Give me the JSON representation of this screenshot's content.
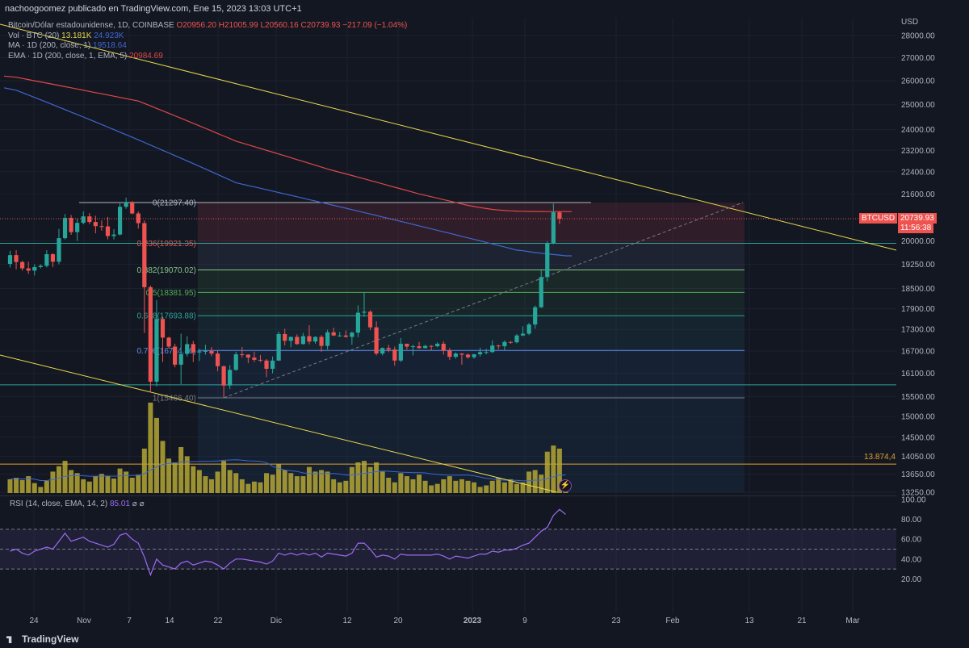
{
  "header": {
    "publisher_line": "nachoogoomez publicado en TradingView.com, Ene 15, 2023 13:03 UTC+1"
  },
  "legend": {
    "symbol_line": "Bitcoin/Dólar estadounidense, 1D, COINBASE",
    "ohlc": {
      "o": "O20956.20",
      "h": "H21005.99",
      "l": "L20560.16",
      "c": "C20739.93",
      "chg": "−217.09 (−1.04%)"
    },
    "vol_label": "Vol · BTC (20)",
    "vol_value": "13.181K",
    "vol_ma": "24.923K",
    "ma_label": "MA · 1D (200, close, 1)",
    "ma_value": "19518.64",
    "ema_label": "EMA · 1D (200, close, 1, EMA, 5)",
    "ema_value": "20984.69"
  },
  "rsi_legend": {
    "label": "RSI (14, close, EMA, 14, 2)",
    "value": "85.01",
    "extra": "⌀ ⌀"
  },
  "price_tag": {
    "symbol": "BTCUSD",
    "price": "20739.93",
    "countdown": "11:56:38"
  },
  "hline_label": "13.874,4",
  "footer": {
    "brand": "TradingView"
  },
  "colors": {
    "background": "#131722",
    "up": "#26a69a",
    "down": "#ef5350",
    "volume": "#b5a734",
    "ma": "#3f67d0",
    "ema": "#e04848",
    "trendline": "#e8d84b",
    "rsi": "#9c6cf2"
  },
  "chart_data": {
    "type": "candlestick",
    "currency": "USD",
    "price_axis": {
      "unit": "USD",
      "ticks": [
        "28000.00",
        "27000.00",
        "26000.00",
        "25000.00",
        "24000.00",
        "23200.00",
        "22400.00",
        "21600.00",
        "20000.00",
        "19250.00",
        "18500.00",
        "17900.00",
        "17300.00",
        "16700.00",
        "16100.00",
        "15500.00",
        "15000.00",
        "14500.00",
        "14050.00",
        "13650.00",
        "13250.00"
      ],
      "tick_values": [
        28000,
        27000,
        26000,
        25000,
        24000,
        23200,
        22400,
        21600,
        20000,
        19250,
        18500,
        17900,
        17300,
        16700,
        16100,
        15500,
        15000,
        14500,
        14050,
        13650,
        13250
      ],
      "scale": "log"
    },
    "x_axis": {
      "tick_labels": [
        "24",
        "Nov",
        "7",
        "14",
        "22",
        "Dic",
        "12",
        "20",
        "2023",
        "9",
        "23",
        "Feb",
        "13",
        "21",
        "Mar"
      ]
    },
    "fibonacci": {
      "levels": [
        {
          "ratio": "0",
          "price": 21297.4,
          "label": "0(21297.40)"
        },
        {
          "ratio": "0.236",
          "price": 19921.35,
          "label": "0.236(19921.35)"
        },
        {
          "ratio": "0.382",
          "price": 19070.02,
          "label": "0.382(19070.02)"
        },
        {
          "ratio": "0.5",
          "price": 18381.95,
          "label": "0.5(18381.95)"
        },
        {
          "ratio": "0.618",
          "price": 17693.88,
          "label": "0.618(17693.88)"
        },
        {
          "ratio": "0.786",
          "price": 16714.86,
          "label": "0.786(16714.86)"
        },
        {
          "ratio": "1",
          "price": 15466.4,
          "label": "1(15466.40)"
        }
      ]
    },
    "horizontal_lines": [
      19921,
      15800,
      13874.4
    ],
    "candles": [
      {
        "date": "2022-10-17",
        "o": 19260,
        "h": 19680,
        "l": 19150,
        "c": 19540
      },
      {
        "date": "2022-10-18",
        "o": 19540,
        "h": 19700,
        "l": 19090,
        "c": 19320
      },
      {
        "date": "2022-10-19",
        "o": 19320,
        "h": 19360,
        "l": 19050,
        "c": 19120
      },
      {
        "date": "2022-10-20",
        "o": 19120,
        "h": 19330,
        "l": 18950,
        "c": 19050
      },
      {
        "date": "2022-10-21",
        "o": 19050,
        "h": 19250,
        "l": 18900,
        "c": 19160
      },
      {
        "date": "2022-10-22",
        "o": 19160,
        "h": 19250,
        "l": 19120,
        "c": 19200
      },
      {
        "date": "2022-10-23",
        "o": 19200,
        "h": 19700,
        "l": 19150,
        "c": 19570
      },
      {
        "date": "2022-10-24",
        "o": 19570,
        "h": 19600,
        "l": 19160,
        "c": 19330
      },
      {
        "date": "2022-10-25",
        "o": 19330,
        "h": 20400,
        "l": 19250,
        "c": 20090
      },
      {
        "date": "2022-10-26",
        "o": 20090,
        "h": 20900,
        "l": 20050,
        "c": 20770
      },
      {
        "date": "2022-10-27",
        "o": 20770,
        "h": 20870,
        "l": 20200,
        "c": 20290
      },
      {
        "date": "2022-10-28",
        "o": 20290,
        "h": 20750,
        "l": 20000,
        "c": 20600
      },
      {
        "date": "2022-10-29",
        "o": 20600,
        "h": 20990,
        "l": 20550,
        "c": 20820
      },
      {
        "date": "2022-10-30",
        "o": 20820,
        "h": 20930,
        "l": 20560,
        "c": 20630
      },
      {
        "date": "2022-10-31",
        "o": 20630,
        "h": 20840,
        "l": 20250,
        "c": 20490
      },
      {
        "date": "2022-11-01",
        "o": 20490,
        "h": 20680,
        "l": 20340,
        "c": 20480
      },
      {
        "date": "2022-11-02",
        "o": 20480,
        "h": 20800,
        "l": 20050,
        "c": 20160
      },
      {
        "date": "2022-11-03",
        "o": 20160,
        "h": 20390,
        "l": 20050,
        "c": 20210
      },
      {
        "date": "2022-11-04",
        "o": 20210,
        "h": 21300,
        "l": 20180,
        "c": 21150
      },
      {
        "date": "2022-11-05",
        "o": 21150,
        "h": 21470,
        "l": 21080,
        "c": 21300
      },
      {
        "date": "2022-11-06",
        "o": 21300,
        "h": 21350,
        "l": 20890,
        "c": 20920
      },
      {
        "date": "2022-11-07",
        "o": 20920,
        "h": 20990,
        "l": 20410,
        "c": 20590
      },
      {
        "date": "2022-11-08",
        "o": 20590,
        "h": 20680,
        "l": 17200,
        "c": 18540
      },
      {
        "date": "2022-11-09",
        "o": 18540,
        "h": 18590,
        "l": 15600,
        "c": 15880
      },
      {
        "date": "2022-11-10",
        "o": 15880,
        "h": 18150,
        "l": 15760,
        "c": 17600
      },
      {
        "date": "2022-11-11",
        "o": 17600,
        "h": 17670,
        "l": 16400,
        "c": 17070
      },
      {
        "date": "2022-11-12",
        "o": 17070,
        "h": 17090,
        "l": 16770,
        "c": 16820
      },
      {
        "date": "2022-11-13",
        "o": 16820,
        "h": 16900,
        "l": 16260,
        "c": 16330
      },
      {
        "date": "2022-11-14",
        "o": 16330,
        "h": 17180,
        "l": 15820,
        "c": 16620
      },
      {
        "date": "2022-11-15",
        "o": 16620,
        "h": 17110,
        "l": 16550,
        "c": 16890
      },
      {
        "date": "2022-11-16",
        "o": 16890,
        "h": 16980,
        "l": 16400,
        "c": 16660
      },
      {
        "date": "2022-11-17",
        "o": 16660,
        "h": 16760,
        "l": 16430,
        "c": 16690
      },
      {
        "date": "2022-11-18",
        "o": 16690,
        "h": 16870,
        "l": 16600,
        "c": 16700
      },
      {
        "date": "2022-11-19",
        "o": 16700,
        "h": 16810,
        "l": 16560,
        "c": 16630
      },
      {
        "date": "2022-11-20",
        "o": 16630,
        "h": 16700,
        "l": 16160,
        "c": 16290
      },
      {
        "date": "2022-11-21",
        "o": 16290,
        "h": 16300,
        "l": 15480,
        "c": 15780
      },
      {
        "date": "2022-11-22",
        "o": 15780,
        "h": 16320,
        "l": 15690,
        "c": 16190
      },
      {
        "date": "2022-11-23",
        "o": 16190,
        "h": 16680,
        "l": 16170,
        "c": 16610
      },
      {
        "date": "2022-11-24",
        "o": 16610,
        "h": 16810,
        "l": 16520,
        "c": 16600
      },
      {
        "date": "2022-11-25",
        "o": 16600,
        "h": 16610,
        "l": 16370,
        "c": 16520
      },
      {
        "date": "2022-11-26",
        "o": 16520,
        "h": 16680,
        "l": 16400,
        "c": 16460
      },
      {
        "date": "2022-11-27",
        "o": 16460,
        "h": 16590,
        "l": 16400,
        "c": 16440
      },
      {
        "date": "2022-11-28",
        "o": 16440,
        "h": 16480,
        "l": 16000,
        "c": 16220
      },
      {
        "date": "2022-11-29",
        "o": 16220,
        "h": 16550,
        "l": 16100,
        "c": 16440
      },
      {
        "date": "2022-11-30",
        "o": 16440,
        "h": 17240,
        "l": 16430,
        "c": 17170
      },
      {
        "date": "2022-12-01",
        "o": 17170,
        "h": 17320,
        "l": 16850,
        "c": 16980
      },
      {
        "date": "2022-12-02",
        "o": 16980,
        "h": 17100,
        "l": 16800,
        "c": 17090
      },
      {
        "date": "2022-12-03",
        "o": 17090,
        "h": 17160,
        "l": 16870,
        "c": 16890
      },
      {
        "date": "2022-12-04",
        "o": 16890,
        "h": 17200,
        "l": 16880,
        "c": 17110
      },
      {
        "date": "2022-12-05",
        "o": 17110,
        "h": 17420,
        "l": 16880,
        "c": 16960
      },
      {
        "date": "2022-12-06",
        "o": 16960,
        "h": 17110,
        "l": 16900,
        "c": 17090
      },
      {
        "date": "2022-12-07",
        "o": 17090,
        "h": 17140,
        "l": 16680,
        "c": 16840
      },
      {
        "date": "2022-12-08",
        "o": 16840,
        "h": 17290,
        "l": 16740,
        "c": 17220
      },
      {
        "date": "2022-12-09",
        "o": 17220,
        "h": 17350,
        "l": 17110,
        "c": 17130
      },
      {
        "date": "2022-12-10",
        "o": 17130,
        "h": 17230,
        "l": 17090,
        "c": 17130
      },
      {
        "date": "2022-12-11",
        "o": 17130,
        "h": 17270,
        "l": 17070,
        "c": 17090
      },
      {
        "date": "2022-12-12",
        "o": 17090,
        "h": 17240,
        "l": 16870,
        "c": 17210
      },
      {
        "date": "2022-12-13",
        "o": 17210,
        "h": 18000,
        "l": 17080,
        "c": 17780
      },
      {
        "date": "2022-12-14",
        "o": 17780,
        "h": 18370,
        "l": 17660,
        "c": 17810
      },
      {
        "date": "2022-12-15",
        "o": 17810,
        "h": 17850,
        "l": 17280,
        "c": 17360
      },
      {
        "date": "2022-12-16",
        "o": 17360,
        "h": 17530,
        "l": 16580,
        "c": 16630
      },
      {
        "date": "2022-12-17",
        "o": 16630,
        "h": 16800,
        "l": 16580,
        "c": 16780
      },
      {
        "date": "2022-12-18",
        "o": 16780,
        "h": 16870,
        "l": 16670,
        "c": 16740
      },
      {
        "date": "2022-12-19",
        "o": 16740,
        "h": 16820,
        "l": 16300,
        "c": 16440
      },
      {
        "date": "2022-12-20",
        "o": 16440,
        "h": 17060,
        "l": 16400,
        "c": 16900
      },
      {
        "date": "2022-12-21",
        "o": 16900,
        "h": 16900,
        "l": 16740,
        "c": 16820
      },
      {
        "date": "2022-12-22",
        "o": 16820,
        "h": 16870,
        "l": 16580,
        "c": 16830
      },
      {
        "date": "2022-12-23",
        "o": 16830,
        "h": 16950,
        "l": 16760,
        "c": 16780
      },
      {
        "date": "2022-12-24",
        "o": 16780,
        "h": 16870,
        "l": 16770,
        "c": 16840
      },
      {
        "date": "2022-12-25",
        "o": 16840,
        "h": 16860,
        "l": 16720,
        "c": 16830
      },
      {
        "date": "2022-12-26",
        "o": 16830,
        "h": 16940,
        "l": 16800,
        "c": 16900
      },
      {
        "date": "2022-12-27",
        "o": 16900,
        "h": 16970,
        "l": 16600,
        "c": 16710
      },
      {
        "date": "2022-12-28",
        "o": 16710,
        "h": 16780,
        "l": 16460,
        "c": 16540
      },
      {
        "date": "2022-12-29",
        "o": 16540,
        "h": 16660,
        "l": 16490,
        "c": 16630
      },
      {
        "date": "2022-12-30",
        "o": 16630,
        "h": 16640,
        "l": 16330,
        "c": 16600
      },
      {
        "date": "2022-12-31",
        "o": 16600,
        "h": 16630,
        "l": 16490,
        "c": 16530
      },
      {
        "date": "2023-01-01",
        "o": 16530,
        "h": 16620,
        "l": 16490,
        "c": 16610
      },
      {
        "date": "2023-01-02",
        "o": 16610,
        "h": 16790,
        "l": 16550,
        "c": 16670
      },
      {
        "date": "2023-01-03",
        "o": 16670,
        "h": 16760,
        "l": 16610,
        "c": 16670
      },
      {
        "date": "2023-01-04",
        "o": 16670,
        "h": 16990,
        "l": 16650,
        "c": 16850
      },
      {
        "date": "2023-01-05",
        "o": 16850,
        "h": 16870,
        "l": 16750,
        "c": 16830
      },
      {
        "date": "2023-01-06",
        "o": 16830,
        "h": 16990,
        "l": 16710,
        "c": 16950
      },
      {
        "date": "2023-01-07",
        "o": 16950,
        "h": 16970,
        "l": 16900,
        "c": 16940
      },
      {
        "date": "2023-01-08",
        "o": 16940,
        "h": 17170,
        "l": 16910,
        "c": 17130
      },
      {
        "date": "2023-01-09",
        "o": 17130,
        "h": 17390,
        "l": 17110,
        "c": 17180
      },
      {
        "date": "2023-01-10",
        "o": 17180,
        "h": 17490,
        "l": 17140,
        "c": 17440
      },
      {
        "date": "2023-01-11",
        "o": 17440,
        "h": 17990,
        "l": 17320,
        "c": 17940
      },
      {
        "date": "2023-01-12",
        "o": 17940,
        "h": 19100,
        "l": 17920,
        "c": 18850
      },
      {
        "date": "2023-01-13",
        "o": 18850,
        "h": 19990,
        "l": 18720,
        "c": 19930
      },
      {
        "date": "2023-01-14",
        "o": 19930,
        "h": 21260,
        "l": 19890,
        "c": 20960
      },
      {
        "date": "2023-01-15",
        "o": 20956.2,
        "h": 21005.99,
        "l": 20560.16,
        "c": 20739.93
      }
    ],
    "volume_k": [
      18,
      20,
      17,
      22,
      13,
      8,
      16,
      28,
      35,
      42,
      30,
      26,
      18,
      15,
      22,
      25,
      22,
      19,
      32,
      28,
      20,
      24,
      58,
      118,
      98,
      68,
      45,
      40,
      60,
      48,
      35,
      30,
      22,
      18,
      28,
      42,
      30,
      26,
      18,
      12,
      15,
      14,
      26,
      24,
      38,
      30,
      26,
      22,
      22,
      34,
      28,
      30,
      28,
      18,
      14,
      16,
      34,
      40,
      42,
      34,
      40,
      28,
      20,
      14,
      26,
      22,
      18,
      24,
      16,
      10,
      12,
      18,
      22,
      16,
      18,
      16,
      14,
      8,
      10,
      16,
      20,
      14,
      18,
      12,
      14,
      28,
      30,
      24,
      54,
      62,
      58,
      14
    ],
    "ma_200": [
      25700,
      25600,
      25500,
      25400,
      25300,
      25200,
      25100,
      25000,
      24900,
      24800,
      24700,
      24600,
      24500,
      24400,
      24300,
      24200,
      24100,
      24000,
      23900,
      23800,
      23700,
      23600,
      23500,
      23400,
      23300,
      23200,
      23100,
      23000,
      22900,
      22800,
      22700,
      22600,
      22500,
      22400,
      22300,
      22200,
      22100,
      22000,
      21950,
      21900,
      21850,
      21800,
      21750,
      21700,
      21650,
      21600,
      21550,
      21500,
      21450,
      21400,
      21350,
      21300,
      21250,
      21200,
      21150,
      21100,
      21050,
      21000,
      20950,
      20900,
      20850,
      20800,
      20750,
      20700,
      20650,
      20600,
      20550,
      20500,
      20450,
      20400,
      20350,
      20300,
      20250,
      20200,
      20150,
      20100,
      20050,
      20000,
      19950,
      19900,
      19850,
      19800,
      19750,
      19700,
      19680,
      19650,
      19620,
      19600,
      19580,
      19560,
      19540,
      19518.64
    ],
    "ema_200": [
      26200,
      26150,
      26100,
      26050,
      26000,
      25950,
      25900,
      25850,
      25800,
      25750,
      25700,
      25650,
      25600,
      25550,
      25500,
      25450,
      25400,
      25350,
      25300,
      25250,
      25200,
      25150,
      25050,
      24950,
      24850,
      24750,
      24650,
      24550,
      24450,
      24350,
      24250,
      24150,
      24050,
      23950,
      23850,
      23750,
      23650,
      23550,
      23480,
      23410,
      23340,
      23270,
      23200,
      23130,
      23060,
      22990,
      22920,
      22850,
      22780,
      22710,
      22640,
      22570,
      22500,
      22440,
      22380,
      22320,
      22260,
      22200,
      22140,
      22080,
      22020,
      21960,
      21900,
      21840,
      21780,
      21720,
      21660,
      21600,
      21550,
      21500,
      21450,
      21400,
      21350,
      21300,
      21250,
      21200,
      21160,
      21120,
      21090,
      21060,
      21040,
      21020,
      21010,
      21000,
      20995,
      20990,
      20988,
      20986,
      20985,
      20985,
      20985,
      20984.69
    ],
    "rsi": {
      "axis_ticks": [
        "100.00",
        "80.00",
        "60.00",
        "40.00",
        "20.00"
      ],
      "tick_values": [
        100,
        80,
        60,
        40,
        20
      ],
      "bands": [
        70,
        50,
        30
      ],
      "values": [
        48,
        50,
        46,
        44,
        48,
        50,
        52,
        50,
        58,
        66,
        58,
        60,
        62,
        58,
        56,
        54,
        52,
        55,
        64,
        66,
        60,
        56,
        42,
        24,
        40,
        34,
        32,
        30,
        36,
        38,
        34,
        36,
        38,
        37,
        34,
        30,
        36,
        40,
        40,
        39,
        38,
        37,
        35,
        38,
        46,
        44,
        46,
        44,
        46,
        44,
        46,
        42,
        46,
        45,
        44,
        43,
        46,
        56,
        56,
        50,
        42,
        44,
        43,
        40,
        45,
        44,
        44,
        44,
        44,
        44,
        45,
        43,
        40,
        43,
        42,
        41,
        43,
        45,
        45,
        48,
        47,
        49,
        49,
        51,
        54,
        56,
        62,
        68,
        72,
        84,
        90,
        85.01
      ]
    }
  }
}
